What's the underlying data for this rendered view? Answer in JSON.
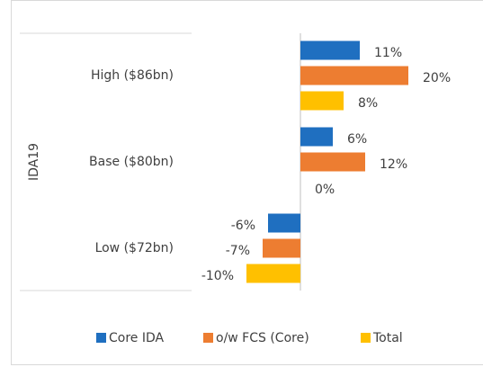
{
  "chart_data": {
    "type": "bar",
    "orientation": "horizontal",
    "axis_label": "IDA19",
    "categories": [
      "High ($86bn)",
      "Base ($80bn)",
      "Low ($72bn)"
    ],
    "series": [
      {
        "name": "Core IDA",
        "color": "#1f6fc0",
        "values": [
          11,
          6,
          -6
        ],
        "value_labels": [
          "11%",
          "6%",
          "-6%"
        ]
      },
      {
        "name": "o/w FCS (Core)",
        "color": "#ed7d31",
        "values": [
          20,
          12,
          -7
        ],
        "value_labels": [
          "20%",
          "12%",
          "-7%"
        ]
      },
      {
        "name": "Total",
        "color": "#ffc000",
        "values": [
          8,
          0,
          -10
        ],
        "value_labels": [
          "8%",
          "0%",
          "-10%"
        ]
      }
    ],
    "legend": "bottom"
  }
}
